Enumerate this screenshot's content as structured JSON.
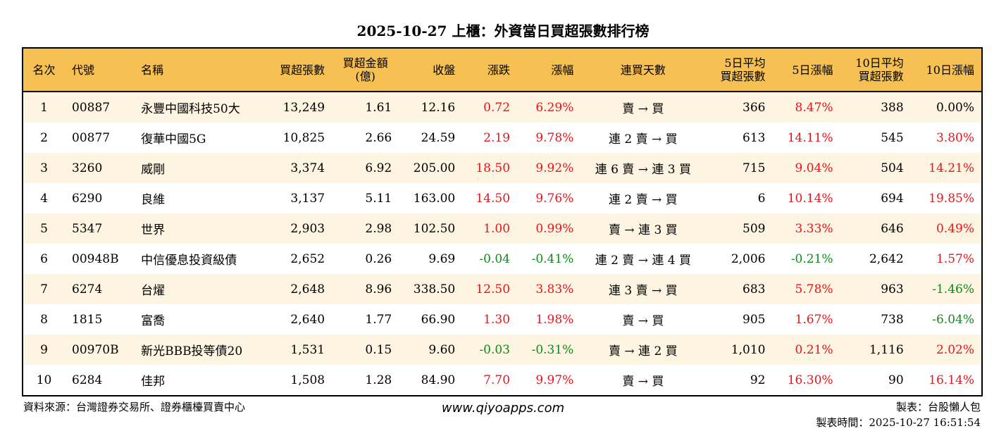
{
  "title": "2025-10-27 上櫃：外資當日買超張數排行榜",
  "headers": [
    "名次",
    "代號",
    "名稱",
    "買超張數",
    "買超金額\n(億)",
    "收盤",
    "漲跌",
    "漲幅",
    "連買天數",
    "5日平均\n買超張數",
    "5日漲幅",
    "10日平均\n買超張數",
    "10日漲幅"
  ],
  "rows": [
    [
      "1",
      "00887",
      "永豐中國科技50大",
      "13,249",
      "1.61",
      "12.16",
      "0.72",
      "6.29%",
      "賣 → 買",
      "366",
      "8.47%",
      "388",
      "0.00%"
    ],
    [
      "2",
      "00877",
      "復華中國5G",
      "10,825",
      "2.66",
      "24.59",
      "2.19",
      "9.78%",
      "連 2 賣 → 買",
      "613",
      "14.11%",
      "545",
      "3.80%"
    ],
    [
      "3",
      "3260",
      "威剛",
      "3,374",
      "6.92",
      "205.00",
      "18.50",
      "9.92%",
      "連 6 賣 → 連 3 買",
      "715",
      "9.04%",
      "504",
      "14.21%"
    ],
    [
      "4",
      "6290",
      "良維",
      "3,137",
      "5.11",
      "163.00",
      "14.50",
      "9.76%",
      "連 2 賣 → 買",
      "6",
      "10.14%",
      "694",
      "19.85%"
    ],
    [
      "5",
      "5347",
      "世界",
      "2,903",
      "2.98",
      "102.50",
      "1.00",
      "0.99%",
      "賣 → 連 3 買",
      "509",
      "3.33%",
      "646",
      "0.49%"
    ],
    [
      "6",
      "00948B",
      "中信優息投資級債",
      "2,652",
      "0.26",
      "9.69",
      "-0.04",
      "-0.41%",
      "連 2 賣 → 連 4 買",
      "2,006",
      "-0.21%",
      "2,642",
      "1.57%"
    ],
    [
      "7",
      "6274",
      "台燿",
      "2,648",
      "8.96",
      "338.50",
      "12.50",
      "3.83%",
      "連 3 賣 → 買",
      "683",
      "5.78%",
      "963",
      "-1.46%"
    ],
    [
      "8",
      "1815",
      "富喬",
      "2,640",
      "1.77",
      "66.90",
      "1.30",
      "1.98%",
      "賣 → 買",
      "905",
      "1.67%",
      "738",
      "-6.04%"
    ],
    [
      "9",
      "00970B",
      "新光BBB投等債20",
      "1,531",
      "0.15",
      "9.60",
      "-0.03",
      "-0.31%",
      "賣 → 連 2 買",
      "1,010",
      "0.21%",
      "1,116",
      "2.02%"
    ],
    [
      "10",
      "6284",
      "佳邦",
      "1,508",
      "1.28",
      "84.90",
      "7.70",
      "9.97%",
      "賣 → 買",
      "92",
      "16.30%",
      "90",
      "16.14%"
    ]
  ],
  "footer": {
    "source": "資料來源：台灣證券交易所、證券櫃檯買賣中心",
    "site": "www.qiyoapps.com",
    "maker": "製表：台股懶人包",
    "time": "製表時間：2025-10-27 16:51:54"
  },
  "colors": {
    "header": "#F6C152",
    "stripe": "#FDF4E1",
    "up": "#e8141a",
    "down": "#0f8a1a"
  }
}
